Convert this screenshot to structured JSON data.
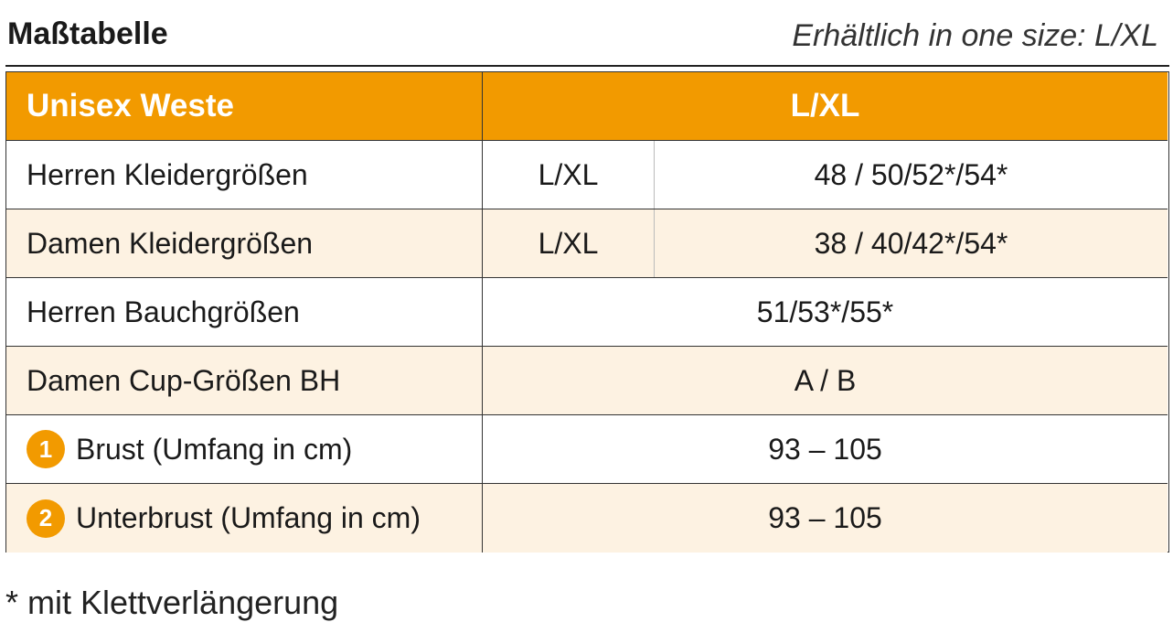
{
  "header": {
    "title": "Maßtabelle",
    "subtitle": "Erhältlich in one size: L/XL"
  },
  "table": {
    "columns": [
      "Unisex Weste",
      "L/XL"
    ],
    "rows": [
      {
        "label": "Herren Kleidergrößen",
        "size": "L/XL",
        "value": "48 / 50/52*/54*"
      },
      {
        "label": "Damen Kleidergrößen",
        "size": "L/XL",
        "value": "38 / 40/42*/54*"
      },
      {
        "label": "Herren Bauchgrößen",
        "value": "51/53*/55*"
      },
      {
        "label": "Damen Cup-Größen BH",
        "value": "A / B"
      },
      {
        "number": "1",
        "label": "Brust (Umfang in cm)",
        "value": "93 – 105"
      },
      {
        "number": "2",
        "label": "Unterbrust (Umfang in cm)",
        "value": "93 – 105"
      }
    ]
  },
  "footnote": "* mit Klettverlängerung"
}
